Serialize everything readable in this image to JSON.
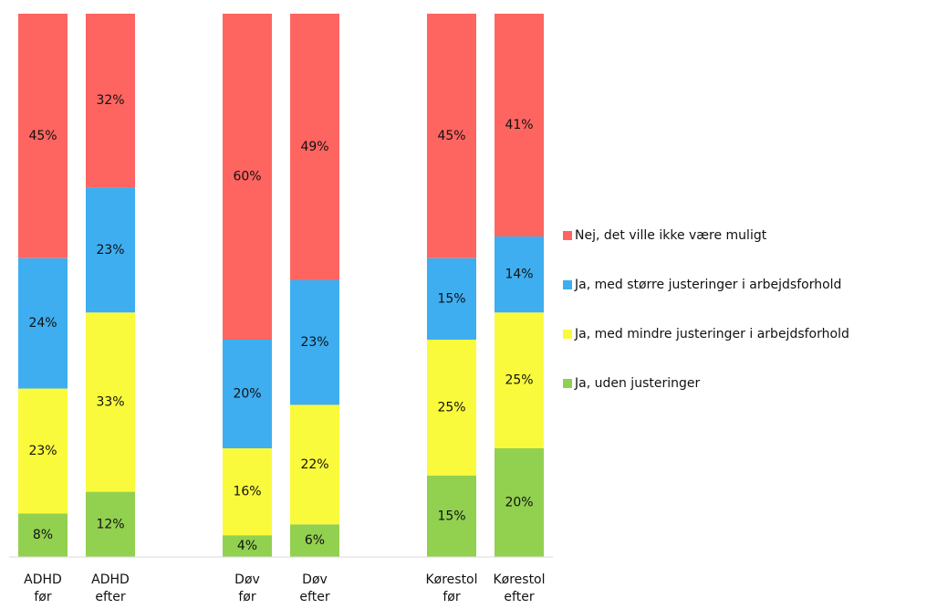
{
  "chart_data": {
    "type": "stacked_bar",
    "categories": [
      [
        "ADHD",
        "før"
      ],
      [
        "ADHD",
        "efter"
      ],
      [
        "Døv",
        "før"
      ],
      [
        "Døv",
        "efter"
      ],
      [
        "Kørestol",
        "før"
      ],
      [
        "Kørestol",
        "efter"
      ]
    ],
    "ylim": [
      0,
      100
    ],
    "series": [
      {
        "name": "Ja, uden justeringer",
        "color": "#92d050",
        "values": [
          8,
          12,
          4,
          6,
          15,
          20
        ],
        "value_labels": [
          "8%",
          "12%",
          "4%",
          "6%",
          "15%",
          "20%"
        ]
      },
      {
        "name": "Ja, med mindre justeringer i arbejdsforhold",
        "color": "#fafa3c",
        "values": [
          23,
          33,
          16,
          22,
          25,
          25
        ],
        "value_labels": [
          "23%",
          "33%",
          "16%",
          "22%",
          "25%",
          "25%"
        ]
      },
      {
        "name": "Ja, med større justeringer i arbejdsforhold",
        "color": "#3eaef0",
        "values": [
          24,
          23,
          20,
          23,
          15,
          14
        ],
        "value_labels": [
          "24%",
          "23%",
          "20%",
          "23%",
          "15%",
          "14%"
        ]
      },
      {
        "name": "Nej, det ville ikke være muligt",
        "color": "#fe6560",
        "values": [
          45,
          32,
          60,
          49,
          45,
          41
        ],
        "value_labels": [
          "45%",
          "32%",
          "60%",
          "49%",
          "45%",
          "41%"
        ]
      }
    ],
    "legend": "right"
  }
}
